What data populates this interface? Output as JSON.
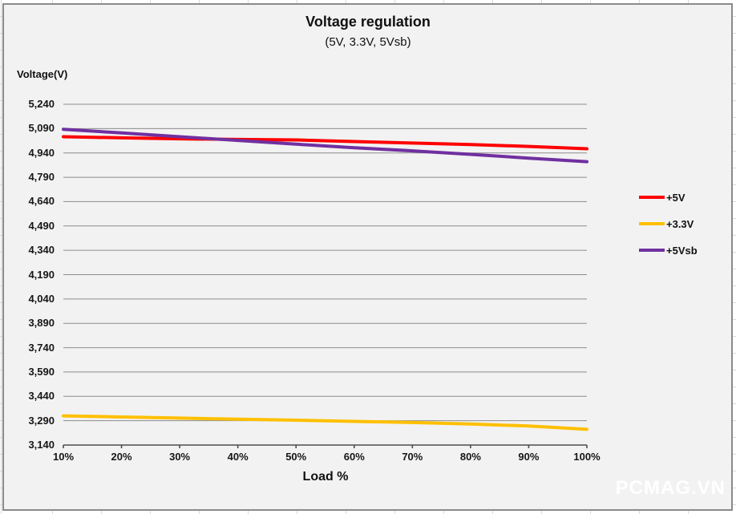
{
  "watermark": "PCMAG.VN",
  "chart_data": {
    "type": "line",
    "title": "Voltage regulation",
    "subtitle": "(5V, 3.3V, 5Vsb)",
    "y_axis_label": "Voltage(V)",
    "x_axis_label": "Load %",
    "categories": [
      "10%",
      "20%",
      "30%",
      "40%",
      "50%",
      "60%",
      "70%",
      "80%",
      "90%",
      "100%"
    ],
    "y_tick_labels": [
      "5,240",
      "5,090",
      "4,940",
      "4,790",
      "4,640",
      "4,490",
      "4,340",
      "4,190",
      "4,040",
      "3,890",
      "3,740",
      "3,590",
      "3,440",
      "3,290",
      "3,140"
    ],
    "ylim": [
      3140,
      5240
    ],
    "y_tick_step": 150,
    "grid": true,
    "legend_position": "right",
    "series": [
      {
        "name": "+5V",
        "color": "#FF0000",
        "values": [
          5040,
          5033,
          5027,
          5023,
          5020,
          5010,
          5001,
          4992,
          4980,
          4966
        ]
      },
      {
        "name": "+3.3V",
        "color": "#FFC000",
        "values": [
          3320,
          3313,
          3306,
          3299,
          3293,
          3286,
          3279,
          3270,
          3257,
          3237
        ]
      },
      {
        "name": "+5Vsb",
        "color": "#7030A0",
        "values": [
          5086,
          5063,
          5040,
          5017,
          4994,
          4972,
          4953,
          4931,
          4908,
          4886
        ]
      }
    ],
    "colors": {
      "plot_background": "#f2f2f2",
      "gridline": "#8c8c8c",
      "axis_line": "#4d4d4d",
      "text": "#111111"
    }
  }
}
